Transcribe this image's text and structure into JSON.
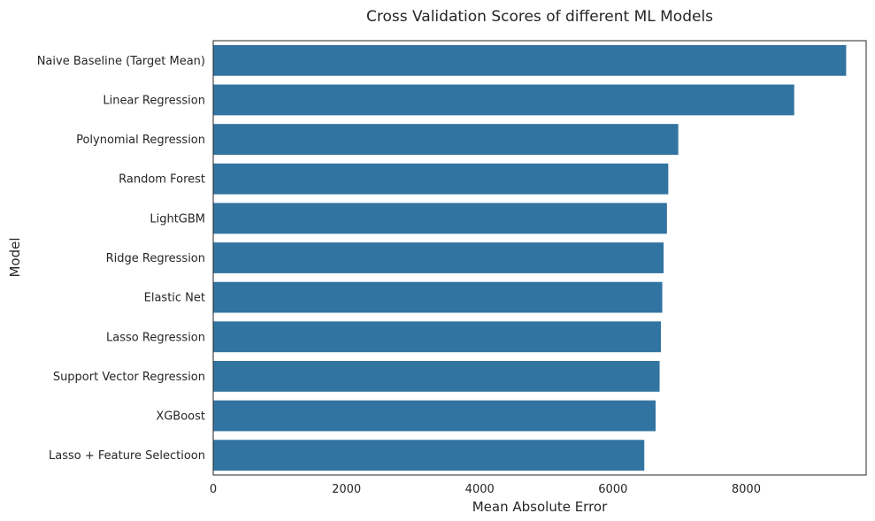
{
  "chart_data": {
    "type": "bar",
    "orientation": "horizontal",
    "title": "Cross Validation Scores of different ML Models",
    "xlabel": "Mean Absolute Error",
    "ylabel": "Model",
    "xlim": [
      0,
      9800
    ],
    "xticks": [
      0,
      2000,
      4000,
      6000,
      8000
    ],
    "grid": false,
    "bar_color": "#3274a1",
    "categories": [
      "Naive Baseline (Target Mean)",
      "Linear Regression",
      "Polynomial Regression",
      "Random Forest",
      "LightGBM",
      "Ridge Regression",
      "Elastic Net",
      "Lasso Regression",
      "Support Vector Regression",
      "XGBoost",
      "Lasso + Feature Selectioon"
    ],
    "values": [
      9500,
      8720,
      6980,
      6830,
      6810,
      6760,
      6740,
      6720,
      6700,
      6640,
      6470
    ]
  }
}
